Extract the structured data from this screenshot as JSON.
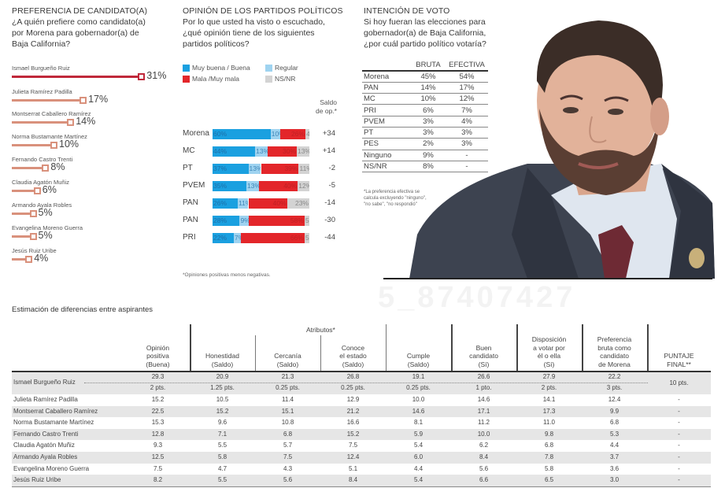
{
  "preferencia": {
    "title": "PREFERENCIA DE CANDIDATO(A)",
    "question": [
      "¿A quién prefiere como candidato(a)",
      "por Morena para gobernador(a) de",
      "Baja California?"
    ],
    "leader_color": "#c0283a",
    "other_color": "#d9917c"
  },
  "opinion": {
    "title": "OPINIÓN DE LOS PARTIDOS POLÍTICOS",
    "question": [
      "Por lo que usted ha visto o escuchado,",
      "¿qué opinión tiene de los siguientes",
      "partidos políticos?"
    ],
    "legend": [
      {
        "label": "Muy buena / Buena",
        "color": "#1aa0e0"
      },
      {
        "label": "Regular",
        "color": "#9fd3f0"
      },
      {
        "label": "Mala /Muy mala",
        "color": "#e3262a"
      },
      {
        "label": "NS/NR",
        "color": "#d3d3d3"
      }
    ],
    "saldo_header": [
      "Saldo",
      "de op.*"
    ],
    "footnote": "*Opiniones positivas menos negativas."
  },
  "intencion": {
    "title": "INTENCIÓN DE VOTO",
    "question": [
      "Si hoy fueran las elecciones para",
      "gobernador(a) de Baja California,",
      "¿por cuál partido político votaría?"
    ],
    "columns": [
      "BRUTA",
      "EFECTIVA"
    ],
    "rows": [
      {
        "party": "Morena",
        "bruta": "45%",
        "efectiva": "54%"
      },
      {
        "party": "PAN",
        "bruta": "14%",
        "efectiva": "17%"
      },
      {
        "party": "MC",
        "bruta": "10%",
        "efectiva": "12%"
      },
      {
        "party": "PRI",
        "bruta": "6%",
        "efectiva": "7%"
      },
      {
        "party": "PVEM",
        "bruta": "3%",
        "efectiva": "4%"
      },
      {
        "party": "PT",
        "bruta": "3%",
        "efectiva": "3%"
      },
      {
        "party": "PES",
        "bruta": "2%",
        "efectiva": "3%"
      },
      {
        "party": "Ninguno",
        "bruta": "9%",
        "efectiva": "-"
      },
      {
        "party": "NS/NR",
        "bruta": "8%",
        "efectiva": "-"
      }
    ],
    "footnote": [
      "*La preferencia efectiva se",
      "calcula excluyendo \"ninguno\",",
      "\"no sabe\", \"no respondió\""
    ]
  },
  "photo": {
    "description": "portrait-photo",
    "watermark": "5_87407427"
  },
  "estimacion": {
    "title": "Estimación de diferencias entre aspirantes",
    "group_header": "Atributos*",
    "columns": [
      [
        "Opinión",
        "positiva",
        "(Buena)"
      ],
      [
        "Honestidad",
        "(Saldo)"
      ],
      [
        "Cercanía",
        "(Saldo)"
      ],
      [
        "Conoce",
        "el estado",
        "(Saldo)"
      ],
      [
        "Cumple",
        "(Saldo)"
      ],
      [
        "Buen",
        "candidato",
        "(Sí)"
      ],
      [
        "Disposición",
        "a votar por",
        "él o ella",
        "(Sí)"
      ],
      [
        "Preferencia",
        "bruta como",
        "candidato",
        "de Morena"
      ],
      [
        "PUNTAJE",
        "FINAL**"
      ]
    ],
    "leader": {
      "name": "Ismael Burgueño Ruiz",
      "values": [
        "29.3",
        "20.9",
        "21.3",
        "26.8",
        "19.1",
        "26.6",
        "27.9",
        "22.2"
      ],
      "points": [
        "2 pts.",
        "1.25 pts.",
        "0.25 pts.",
        "0.25 pts.",
        "0.25 pts.",
        "1 pto.",
        "2 pts.",
        "3 pts."
      ],
      "final": "10 pts."
    },
    "rows": [
      {
        "name": "Julieta Ramírez Padilla",
        "values": [
          "15.2",
          "10.5",
          "11.4",
          "12.9",
          "10.0",
          "14.6",
          "14.1",
          "12.4",
          "-"
        ]
      },
      {
        "name": "Montserrat Caballero Ramírez",
        "values": [
          "22.5",
          "15.2",
          "15.1",
          "21.2",
          "14.6",
          "17.1",
          "17.3",
          "9.9",
          "-"
        ]
      },
      {
        "name": "Norma Bustamante Martínez",
        "values": [
          "15.3",
          "9.6",
          "10.8",
          "16.6",
          "8.1",
          "11.2",
          "11.0",
          "6.8",
          "-"
        ]
      },
      {
        "name": "Fernando Castro Trenti",
        "values": [
          "12.8",
          "7.1",
          "6.8",
          "15.2",
          "5.9",
          "10.0",
          "9.8",
          "5.3",
          "-"
        ]
      },
      {
        "name": "Claudia Agatón Muñiz",
        "values": [
          "9.3",
          "5.5",
          "5.7",
          "7.5",
          "5.4",
          "6.2",
          "6.8",
          "4.4",
          "-"
        ]
      },
      {
        "name": "Armando Ayala Robles",
        "values": [
          "12.5",
          "5.8",
          "7.5",
          "12.4",
          "6.0",
          "8.4",
          "7.8",
          "3.7",
          "-"
        ]
      },
      {
        "name": "Evangelina Moreno Guerra",
        "values": [
          "7.5",
          "4.7",
          "4.3",
          "5.1",
          "4.4",
          "5.6",
          "5.8",
          "3.6",
          "-"
        ]
      },
      {
        "name": "Jesús Ruiz Uribe",
        "values": [
          "8.2",
          "5.5",
          "5.6",
          "8.4",
          "5.4",
          "6.6",
          "6.5",
          "3.0",
          "-"
        ]
      }
    ]
  },
  "chart_data": [
    {
      "type": "bar",
      "title": "PREFERENCIA DE CANDIDATO(A)",
      "orientation": "horizontal",
      "categories": [
        "Ismael Burgueño Ruiz",
        "Julieta Ramírez Padilla",
        "Montserrat Caballero Ramírez",
        "Norma Bustamante Martínez",
        "Fernando Castro Trenti",
        "Claudia Agatón Muñiz",
        "Armando Ayala Robles",
        "Evangelina Moreno Guerra",
        "Jesús Ruiz Uribe"
      ],
      "values": [
        31,
        17,
        14,
        10,
        8,
        6,
        5,
        5,
        4
      ],
      "value_labels": [
        "31%",
        "17%",
        "14%",
        "10%",
        "8%",
        "6%",
        "5%",
        "5%",
        "4%"
      ],
      "unit": "%"
    },
    {
      "type": "bar",
      "stacked": true,
      "orientation": "horizontal",
      "title": "OPINIÓN DE LOS PARTIDOS POLÍTICOS",
      "categories": [
        "Morena",
        "MC",
        "PT",
        "PVEM",
        "PAN",
        "PAN",
        "PRI"
      ],
      "series": [
        {
          "name": "Muy buena / Buena",
          "values": [
            60,
            44,
            37,
            35,
            26,
            28,
            22
          ]
        },
        {
          "name": "Regular",
          "values": [
            10,
            13,
            13,
            13,
            11,
            9,
            7
          ]
        },
        {
          "name": "Mala /Muy mala",
          "values": [
            26,
            30,
            39,
            40,
            40,
            58,
            66
          ]
        },
        {
          "name": "NS/NR",
          "values": [
            4,
            13,
            11,
            12,
            23,
            5,
            5
          ]
        }
      ],
      "saldo": [
        "+34",
        "+14",
        "-2",
        "-5",
        "-14",
        "-30",
        "-44"
      ],
      "legend": "top"
    }
  ]
}
